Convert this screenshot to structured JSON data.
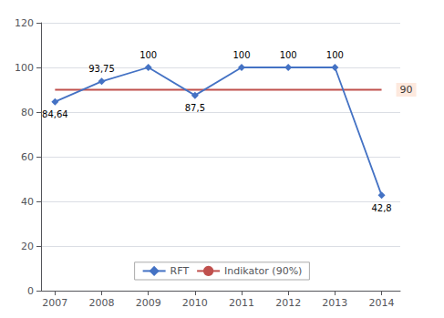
{
  "chart_data": {
    "type": "line",
    "x": [
      2007,
      2008,
      2009,
      2010,
      2011,
      2012,
      2013,
      2014
    ],
    "xlim": [
      2006.7,
      2014.4
    ],
    "xticks": [
      2007,
      2008,
      2009,
      2010,
      2011,
      2012,
      2013,
      2014
    ],
    "ylim": [
      0,
      120
    ],
    "yticks": [
      0,
      20,
      40,
      60,
      80,
      100,
      120
    ],
    "grid": true,
    "legend": "bottom",
    "data_labels": true,
    "series": [
      {
        "name": "RFT",
        "color": "#4472C4",
        "marker": "diamond",
        "values": [
          84.64,
          93.75,
          100,
          87.5,
          100,
          100,
          100,
          42.8
        ],
        "value_labels": [
          "84,64",
          "93,75",
          "100",
          "87,5",
          "100",
          "100",
          "100",
          "42,8"
        ]
      },
      {
        "name": "Indikator (90%)",
        "color": "#C0504D",
        "marker": "none",
        "values": [
          90,
          90,
          90,
          90,
          90,
          90,
          90,
          90
        ]
      }
    ],
    "annotations": [
      {
        "text": "90",
        "x": 2014,
        "y": 90,
        "color": "#fce4d6"
      }
    ]
  }
}
